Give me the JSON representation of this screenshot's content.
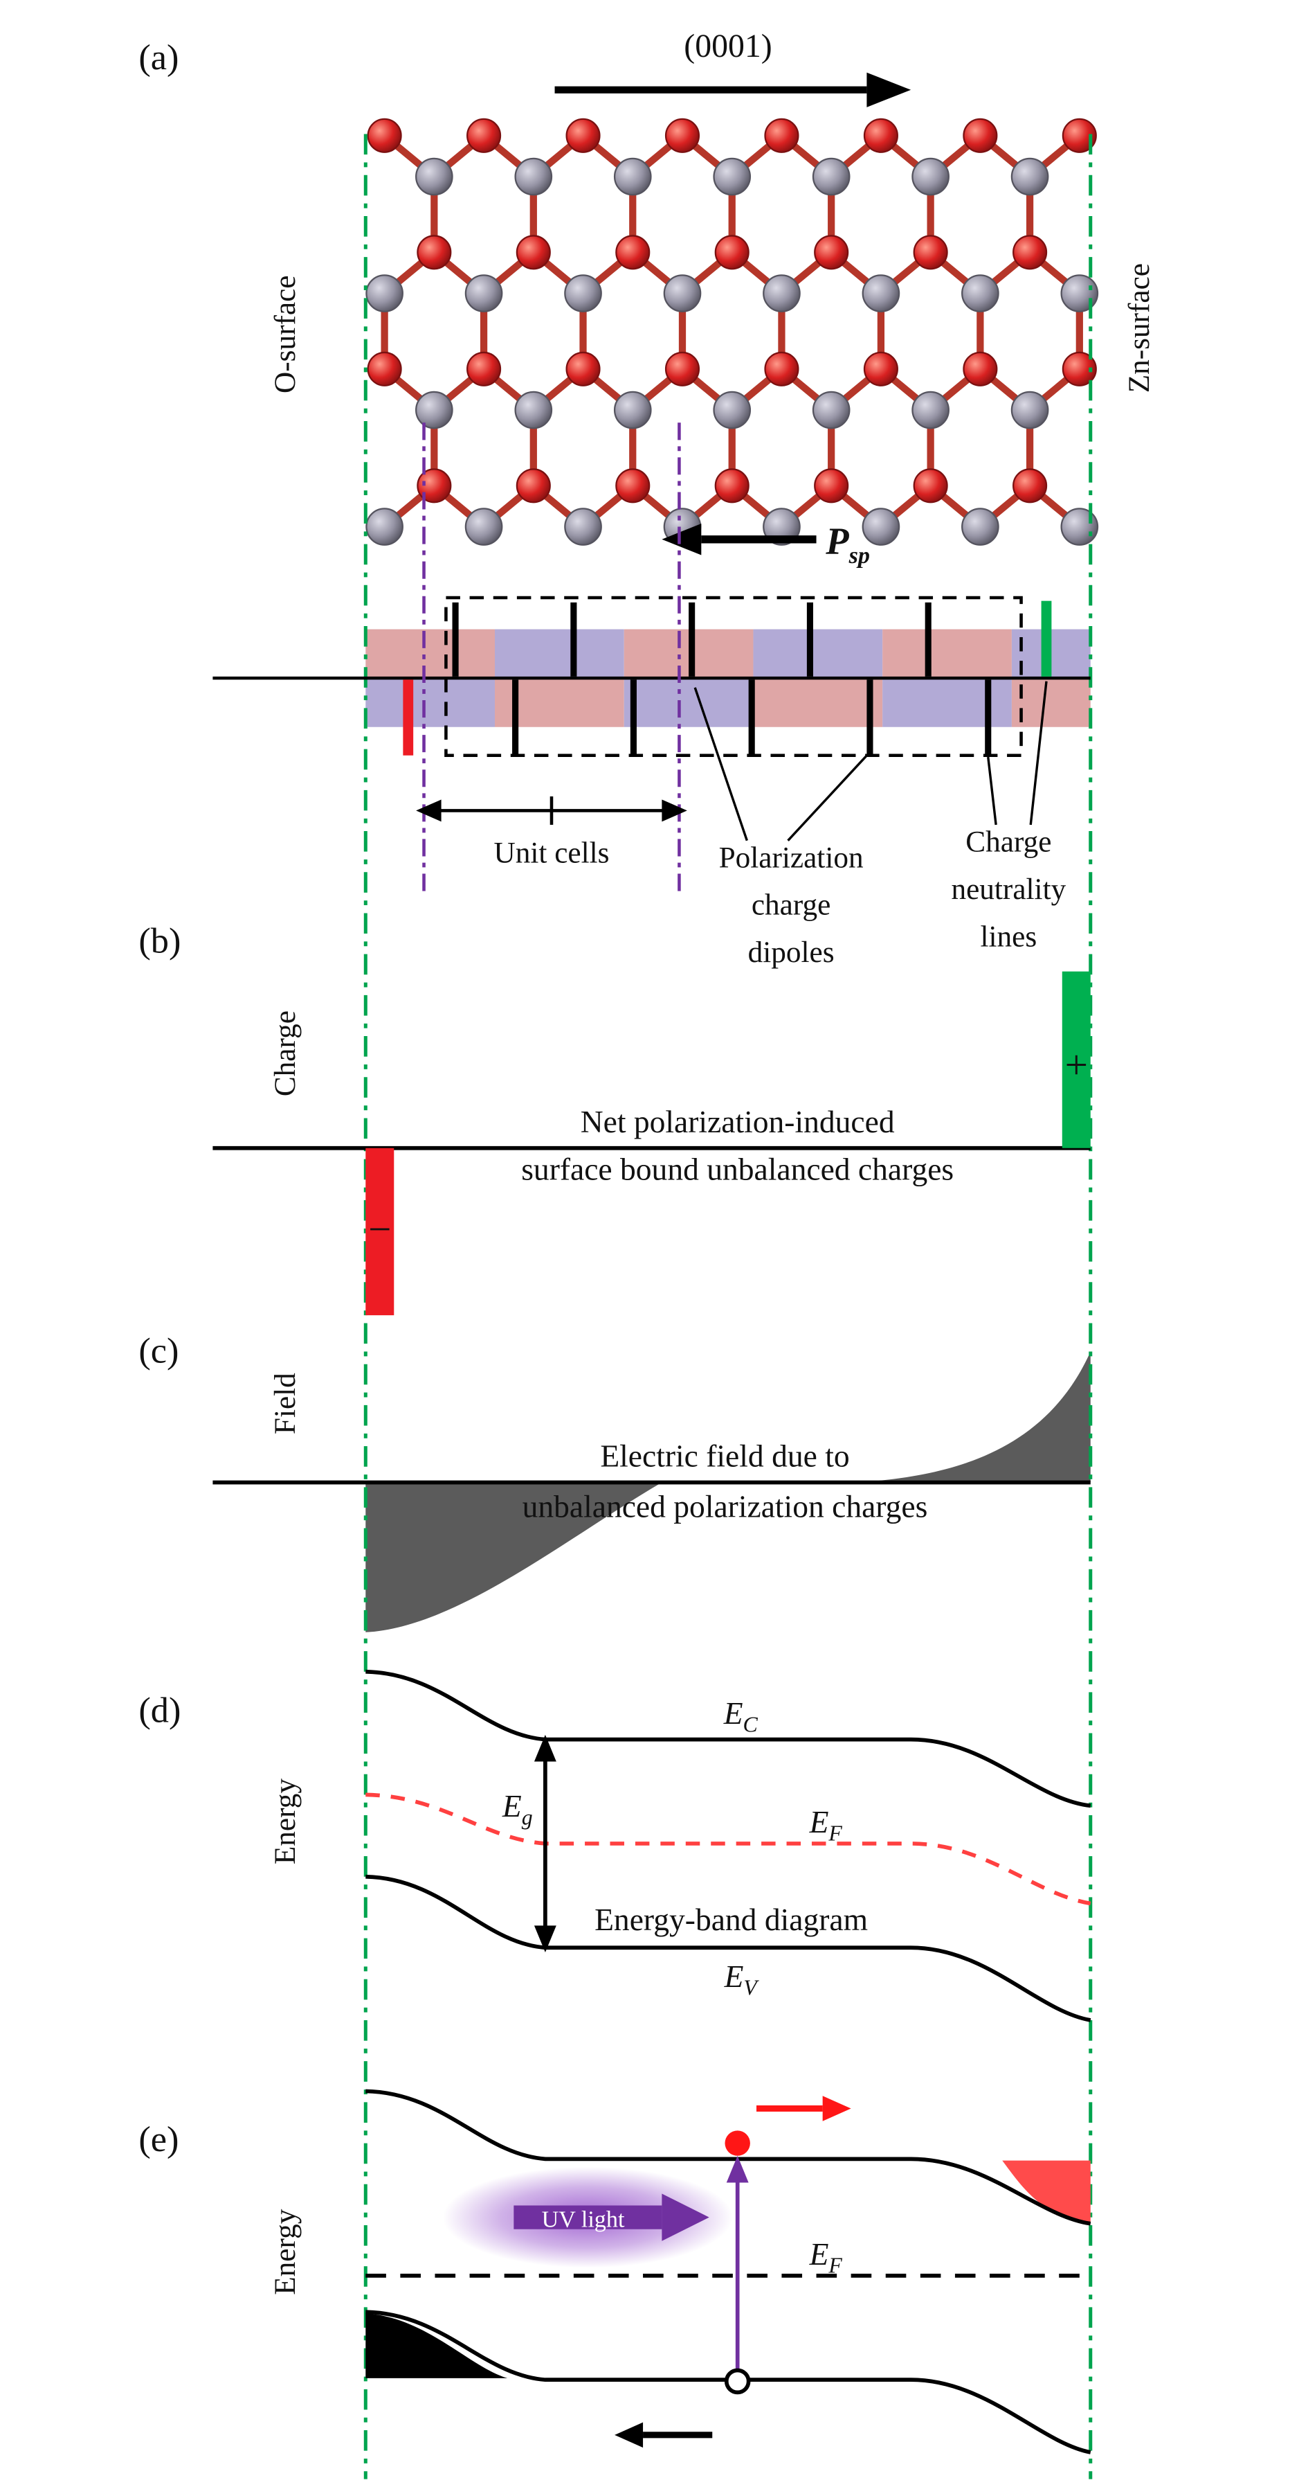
{
  "colors": {
    "green_line": "#00a44e",
    "green_bar": "#00b050",
    "red": "#ed1c24",
    "purple": "#7030a0",
    "band_pink": "#dfa6a6",
    "band_purple": "#b2aad6",
    "field_gray": "#5b5b5b",
    "ef_red": "#ff4040",
    "electron_red": "#ff1616",
    "accumulation_red": "#ff4b4b",
    "atom_o": "#d92121",
    "atom_zn": "#9795a6"
  },
  "panel_a": {
    "label": "(a)",
    "direction": "(0001)",
    "left_surface": "O-surface",
    "right_surface": "Zn-surface",
    "p_label": "P",
    "p_sub": "sp",
    "unit_cells": "Unit cells",
    "dipole_caption": [
      "Polarization",
      "charge",
      "dipoles"
    ],
    "neutrality_caption": [
      "Charge",
      "neutrality",
      "lines"
    ]
  },
  "panel_b": {
    "label": "(b)",
    "axis": "Charge",
    "plus": "+",
    "minus": "−",
    "caption": [
      "Net polarization-induced",
      "surface bound unbalanced charges"
    ]
  },
  "panel_c": {
    "label": "(c)",
    "axis": "Field",
    "caption": [
      "Electric field due to",
      "unbalanced polarization charges"
    ]
  },
  "panel_d": {
    "label": "(d)",
    "axis": "Energy",
    "ec": "E",
    "ec_sub": "C",
    "ef": "E",
    "ef_sub": "F",
    "ev": "E",
    "ev_sub": "V",
    "eg": "E",
    "eg_sub": "g",
    "caption": "Energy-band diagram"
  },
  "panel_e": {
    "label": "(e)",
    "axis": "Energy",
    "uv_label": "UV light",
    "ef": "E",
    "ef_sub": "F"
  }
}
